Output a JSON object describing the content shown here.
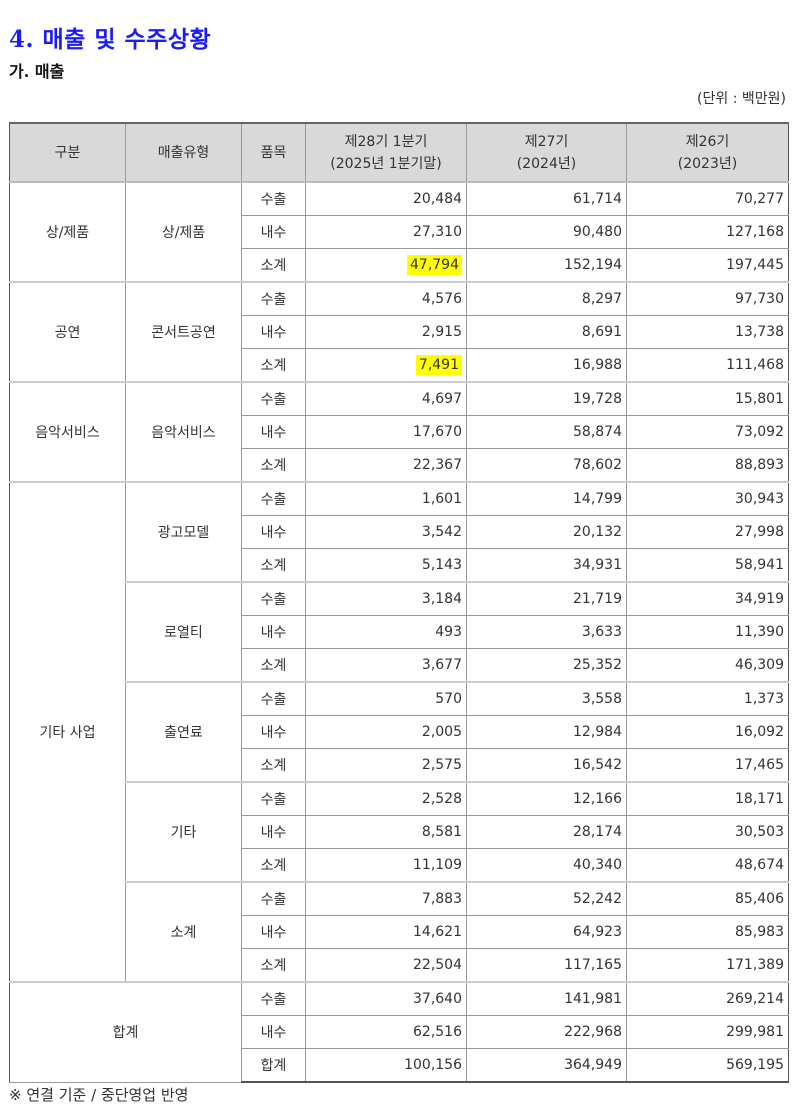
{
  "title": "4. 매출 및 수주상황",
  "subtitle": "가. 매출",
  "unit": "(단위 : 백만원)",
  "headers": {
    "category": "구분",
    "type": "매출유형",
    "item": "품목",
    "q1_line1": "제28기 1분기",
    "q1_line2": "(2025년 1분기말)",
    "y2024_line1": "제27기",
    "y2024_line2": "(2024년)",
    "y2023_line1": "제26기",
    "y2023_line2": "(2023년)"
  },
  "highlight_color": "#ffff00",
  "groups": [
    {
      "category": "상/제품",
      "subgroups": [
        {
          "type": "상/제품",
          "rows": [
            {
              "item": "수출",
              "q1": "20,484",
              "y2024": "61,714",
              "y2023": "70,277"
            },
            {
              "item": "내수",
              "q1": "27,310",
              "y2024": "90,480",
              "y2023": "127,168"
            },
            {
              "item": "소계",
              "q1": "47,794",
              "y2024": "152,194",
              "y2023": "197,445",
              "highlight": true
            }
          ]
        }
      ]
    },
    {
      "category": "공연",
      "subgroups": [
        {
          "type": "콘서트공연",
          "rows": [
            {
              "item": "수출",
              "q1": "4,576",
              "y2024": "8,297",
              "y2023": "97,730"
            },
            {
              "item": "내수",
              "q1": "2,915",
              "y2024": "8,691",
              "y2023": "13,738"
            },
            {
              "item": "소계",
              "q1": "7,491",
              "y2024": "16,988",
              "y2023": "111,468",
              "highlight": true
            }
          ]
        }
      ]
    },
    {
      "category": "음악서비스",
      "subgroups": [
        {
          "type": "음악서비스",
          "rows": [
            {
              "item": "수출",
              "q1": "4,697",
              "y2024": "19,728",
              "y2023": "15,801"
            },
            {
              "item": "내수",
              "q1": "17,670",
              "y2024": "58,874",
              "y2023": "73,092"
            },
            {
              "item": "소계",
              "q1": "22,367",
              "y2024": "78,602",
              "y2023": "88,893"
            }
          ]
        }
      ]
    },
    {
      "category": "기타 사업",
      "subgroups": [
        {
          "type": "광고모델",
          "rows": [
            {
              "item": "수출",
              "q1": "1,601",
              "y2024": "14,799",
              "y2023": "30,943"
            },
            {
              "item": "내수",
              "q1": "3,542",
              "y2024": "20,132",
              "y2023": "27,998"
            },
            {
              "item": "소계",
              "q1": "5,143",
              "y2024": "34,931",
              "y2023": "58,941"
            }
          ]
        },
        {
          "type": "로열티",
          "rows": [
            {
              "item": "수출",
              "q1": "3,184",
              "y2024": "21,719",
              "y2023": "34,919"
            },
            {
              "item": "내수",
              "q1": "493",
              "y2024": "3,633",
              "y2023": "11,390"
            },
            {
              "item": "소계",
              "q1": "3,677",
              "y2024": "25,352",
              "y2023": "46,309"
            }
          ]
        },
        {
          "type": "출연료",
          "rows": [
            {
              "item": "수출",
              "q1": "570",
              "y2024": "3,558",
              "y2023": "1,373"
            },
            {
              "item": "내수",
              "q1": "2,005",
              "y2024": "12,984",
              "y2023": "16,092"
            },
            {
              "item": "소계",
              "q1": "2,575",
              "y2024": "16,542",
              "y2023": "17,465"
            }
          ]
        },
        {
          "type": "기타",
          "rows": [
            {
              "item": "수출",
              "q1": "2,528",
              "y2024": "12,166",
              "y2023": "18,171"
            },
            {
              "item": "내수",
              "q1": "8,581",
              "y2024": "28,174",
              "y2023": "30,503"
            },
            {
              "item": "소계",
              "q1": "11,109",
              "y2024": "40,340",
              "y2023": "48,674"
            }
          ]
        },
        {
          "type": "소계",
          "rows": [
            {
              "item": "수출",
              "q1": "7,883",
              "y2024": "52,242",
              "y2023": "85,406"
            },
            {
              "item": "내수",
              "q1": "14,621",
              "y2024": "64,923",
              "y2023": "85,983"
            },
            {
              "item": "소계",
              "q1": "22,504",
              "y2024": "117,165",
              "y2023": "171,389"
            }
          ]
        }
      ]
    },
    {
      "category": "합계",
      "merged": true,
      "subgroups": [
        {
          "rows": [
            {
              "item": "수출",
              "q1": "37,640",
              "y2024": "141,981",
              "y2023": "269,214"
            },
            {
              "item": "내수",
              "q1": "62,516",
              "y2024": "222,968",
              "y2023": "299,981"
            },
            {
              "item": "합계",
              "q1": "100,156",
              "y2024": "364,949",
              "y2023": "569,195"
            }
          ]
        }
      ]
    }
  ],
  "footnote": "※ 연결 기준 / 중단영업 반영"
}
